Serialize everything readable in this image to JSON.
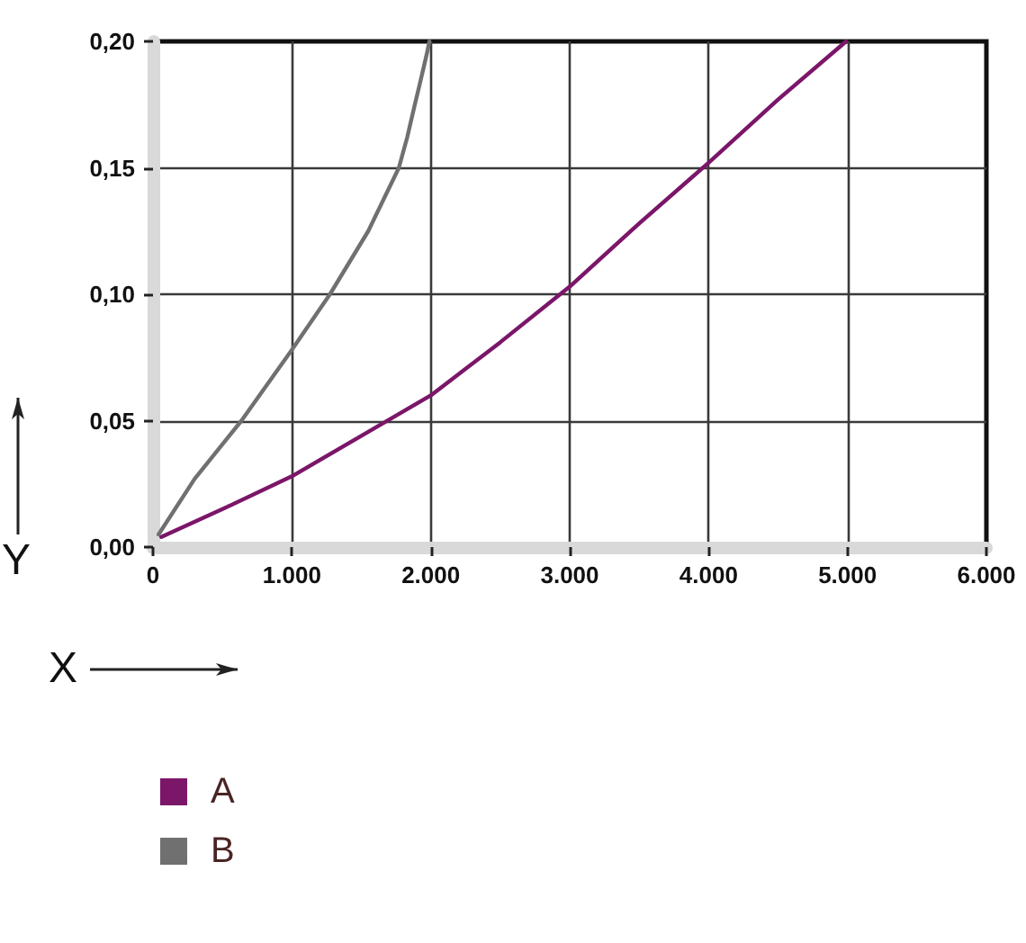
{
  "chart_data": {
    "type": "line",
    "xlabel": "X",
    "ylabel": "Y",
    "xlim": [
      0,
      6000
    ],
    "xticks": [
      0,
      {
        "value": 1000,
        "label": "1.000"
      },
      {
        "value": 2000,
        "label": "2.000"
      },
      {
        "value": 3000,
        "label": "3.000"
      },
      {
        "value": 4000,
        "label": "4.000"
      },
      {
        "value": 5000,
        "label": "5.000"
      },
      {
        "value": 6000,
        "label": "6.000"
      }
    ],
    "ylim": [
      0,
      0.2
    ],
    "yticks": [
      {
        "value": 0,
        "label": "0,00"
      },
      {
        "value": 0.05,
        "label": "0,05"
      },
      {
        "value": 0.1,
        "label": "0,10"
      },
      {
        "value": 0.15,
        "label": "0,15"
      },
      {
        "value": 0.2,
        "label": "0,20"
      }
    ],
    "series": [
      {
        "name": "A",
        "color": "#7b1669",
        "x": [
          60,
          500,
          1000,
          1500,
          2000,
          2500,
          3000,
          3500,
          4000,
          4500,
          4990
        ],
        "values": [
          0.004,
          0.015,
          0.028,
          0.044,
          0.06,
          0.081,
          0.103,
          0.128,
          0.152,
          0.177,
          0.2
        ]
      },
      {
        "name": "B",
        "color": "#707070",
        "x": [
          40,
          300,
          637,
          1000,
          1274,
          1550,
          1770,
          1830,
          1885,
          1920,
          1950,
          1975,
          1990
        ],
        "values": [
          0.005,
          0.027,
          0.05,
          0.078,
          0.1,
          0.125,
          0.15,
          0.162,
          0.175,
          0.183,
          0.19,
          0.196,
          0.2
        ]
      }
    ],
    "grid": true,
    "legend": "bottom left",
    "line_style": "solid"
  }
}
